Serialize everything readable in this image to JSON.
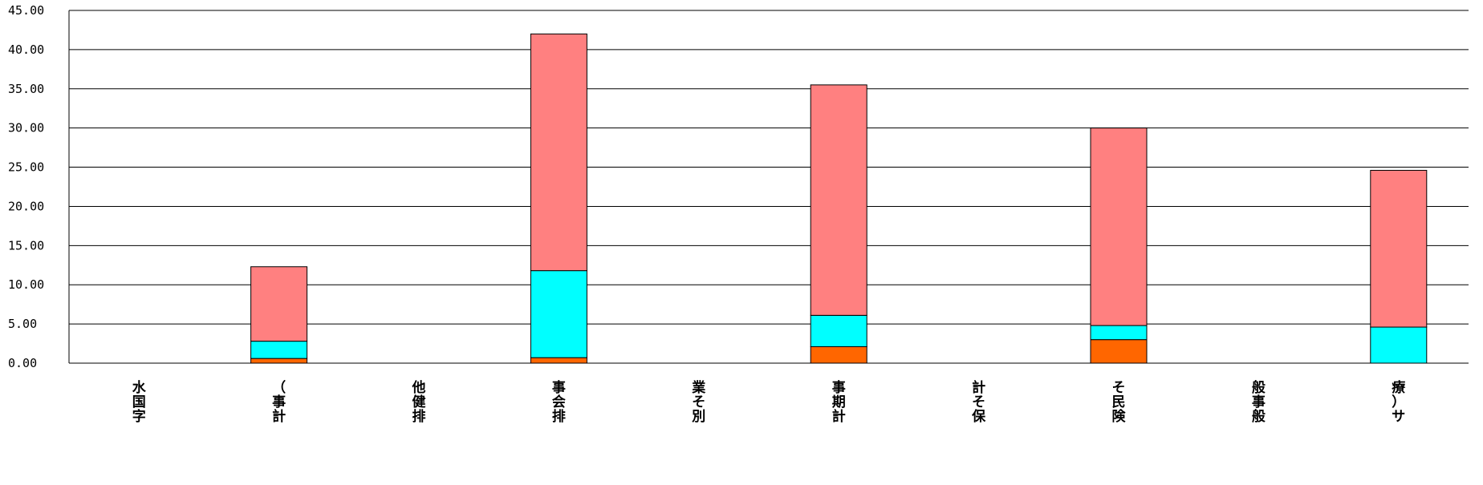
{
  "chart_data": {
    "type": "bar",
    "stacked": true,
    "categories": [
      "水国字",
      "（事計",
      "他健排",
      "事会排",
      "業そ別",
      "事期計",
      "計そ保",
      "そ民険",
      "般事般",
      "療）サ"
    ],
    "series": [
      {
        "color": "#FF6600",
        "values": [
          0,
          0.6,
          0,
          0.7,
          0,
          2.1,
          0,
          3.0,
          0,
          0
        ]
      },
      {
        "color": "#00FFFF",
        "values": [
          0,
          2.2,
          0,
          11.1,
          0,
          4.0,
          0,
          1.8,
          0,
          4.6
        ]
      },
      {
        "color": "#FF8080",
        "values": [
          0,
          9.5,
          0,
          30.2,
          0,
          29.4,
          0,
          25.2,
          0,
          20.0
        ]
      }
    ],
    "ylim": [
      0,
      45
    ],
    "yticks": [
      "0.00",
      "5.00",
      "10.00",
      "15.00",
      "20.00",
      "25.00",
      "30.00",
      "35.00",
      "40.00",
      "45.00"
    ],
    "ytick_values": [
      0,
      5,
      10,
      15,
      20,
      25,
      30,
      35,
      40,
      45
    ],
    "grid": true,
    "xlabel": "",
    "ylabel": "",
    "title": ""
  }
}
